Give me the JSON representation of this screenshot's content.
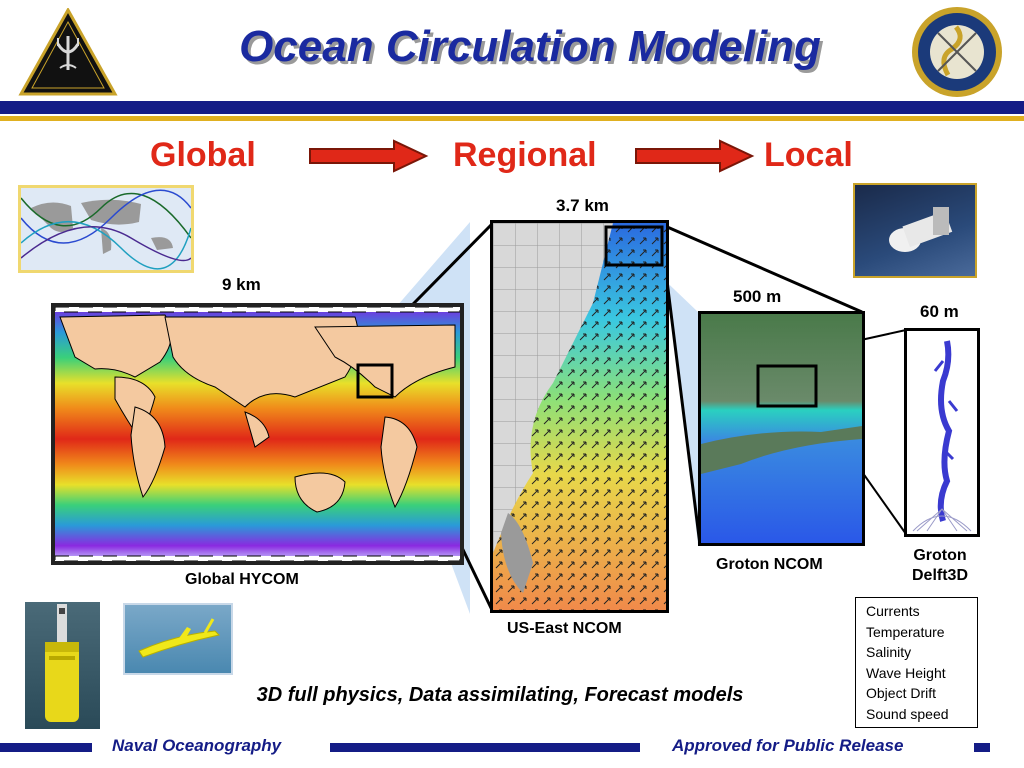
{
  "title": "Ocean Circulation Modeling",
  "stages": {
    "global": "Global",
    "regional": "Regional",
    "local": "Local"
  },
  "resolutions": {
    "global": "9 km",
    "regional": "3.7 km",
    "groton": "500 m",
    "delft": "60 m"
  },
  "models": {
    "global": "Global HYCOM",
    "regional": "US-East NCOM",
    "groton": "Groton NCOM",
    "delft_line1": "Groton",
    "delft_line2": "Delft3D"
  },
  "variables": [
    "Currents",
    "Temperature",
    "Salinity",
    "Wave Height",
    "Object Drift",
    "Sound speed"
  ],
  "tagline": "3D full physics, Data assimilating, Forecast models",
  "logos": {
    "left": "NAVAL METEOROLOGY AND OCEANOGRAPHY COMMAND",
    "right": "NAVAL OCEANOGRAPHIC OFFICE"
  },
  "footer": {
    "left": "Naval Oceanography",
    "right": "Approved for Public Release"
  },
  "colors": {
    "title": "#1a2aa0",
    "stage": "#e02818",
    "navy": "#141c86",
    "gold": "#e0b020"
  }
}
